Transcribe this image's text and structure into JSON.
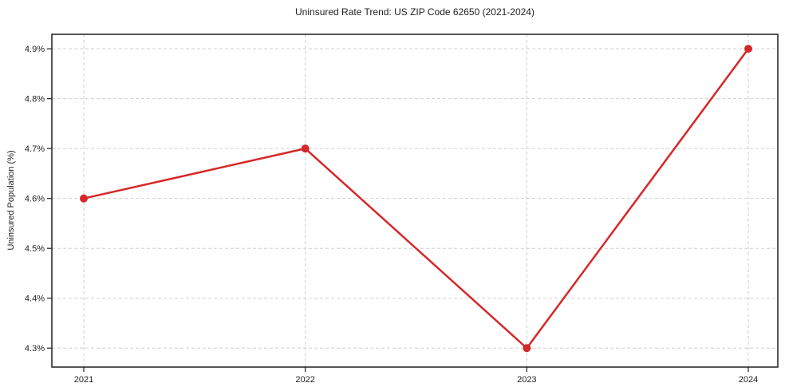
{
  "chart_data": {
    "type": "line",
    "title": "Uninsured Rate Trend: US ZIP Code 62650 (2021-2024)",
    "xlabel": "",
    "ylabel": "Uninsured Population (%)",
    "categories": [
      "2021",
      "2022",
      "2023",
      "2024"
    ],
    "values": [
      4.6,
      4.7,
      4.3,
      4.9
    ],
    "yticks": [
      4.3,
      4.4,
      4.5,
      4.6,
      4.7,
      4.8,
      4.9
    ],
    "ytick_labels": [
      "4.3%",
      "4.4%",
      "4.5%",
      "4.6%",
      "4.7%",
      "4.8%",
      "4.9%"
    ],
    "ylim": [
      4.262,
      4.929
    ],
    "grid": true,
    "grid_style": "dashed",
    "grid_color": "#cfcfcf",
    "legend": "none",
    "line_color": "#d62728",
    "marker": "circle",
    "marker_color": "#d62728",
    "axis_color": "#1f1f1f"
  }
}
